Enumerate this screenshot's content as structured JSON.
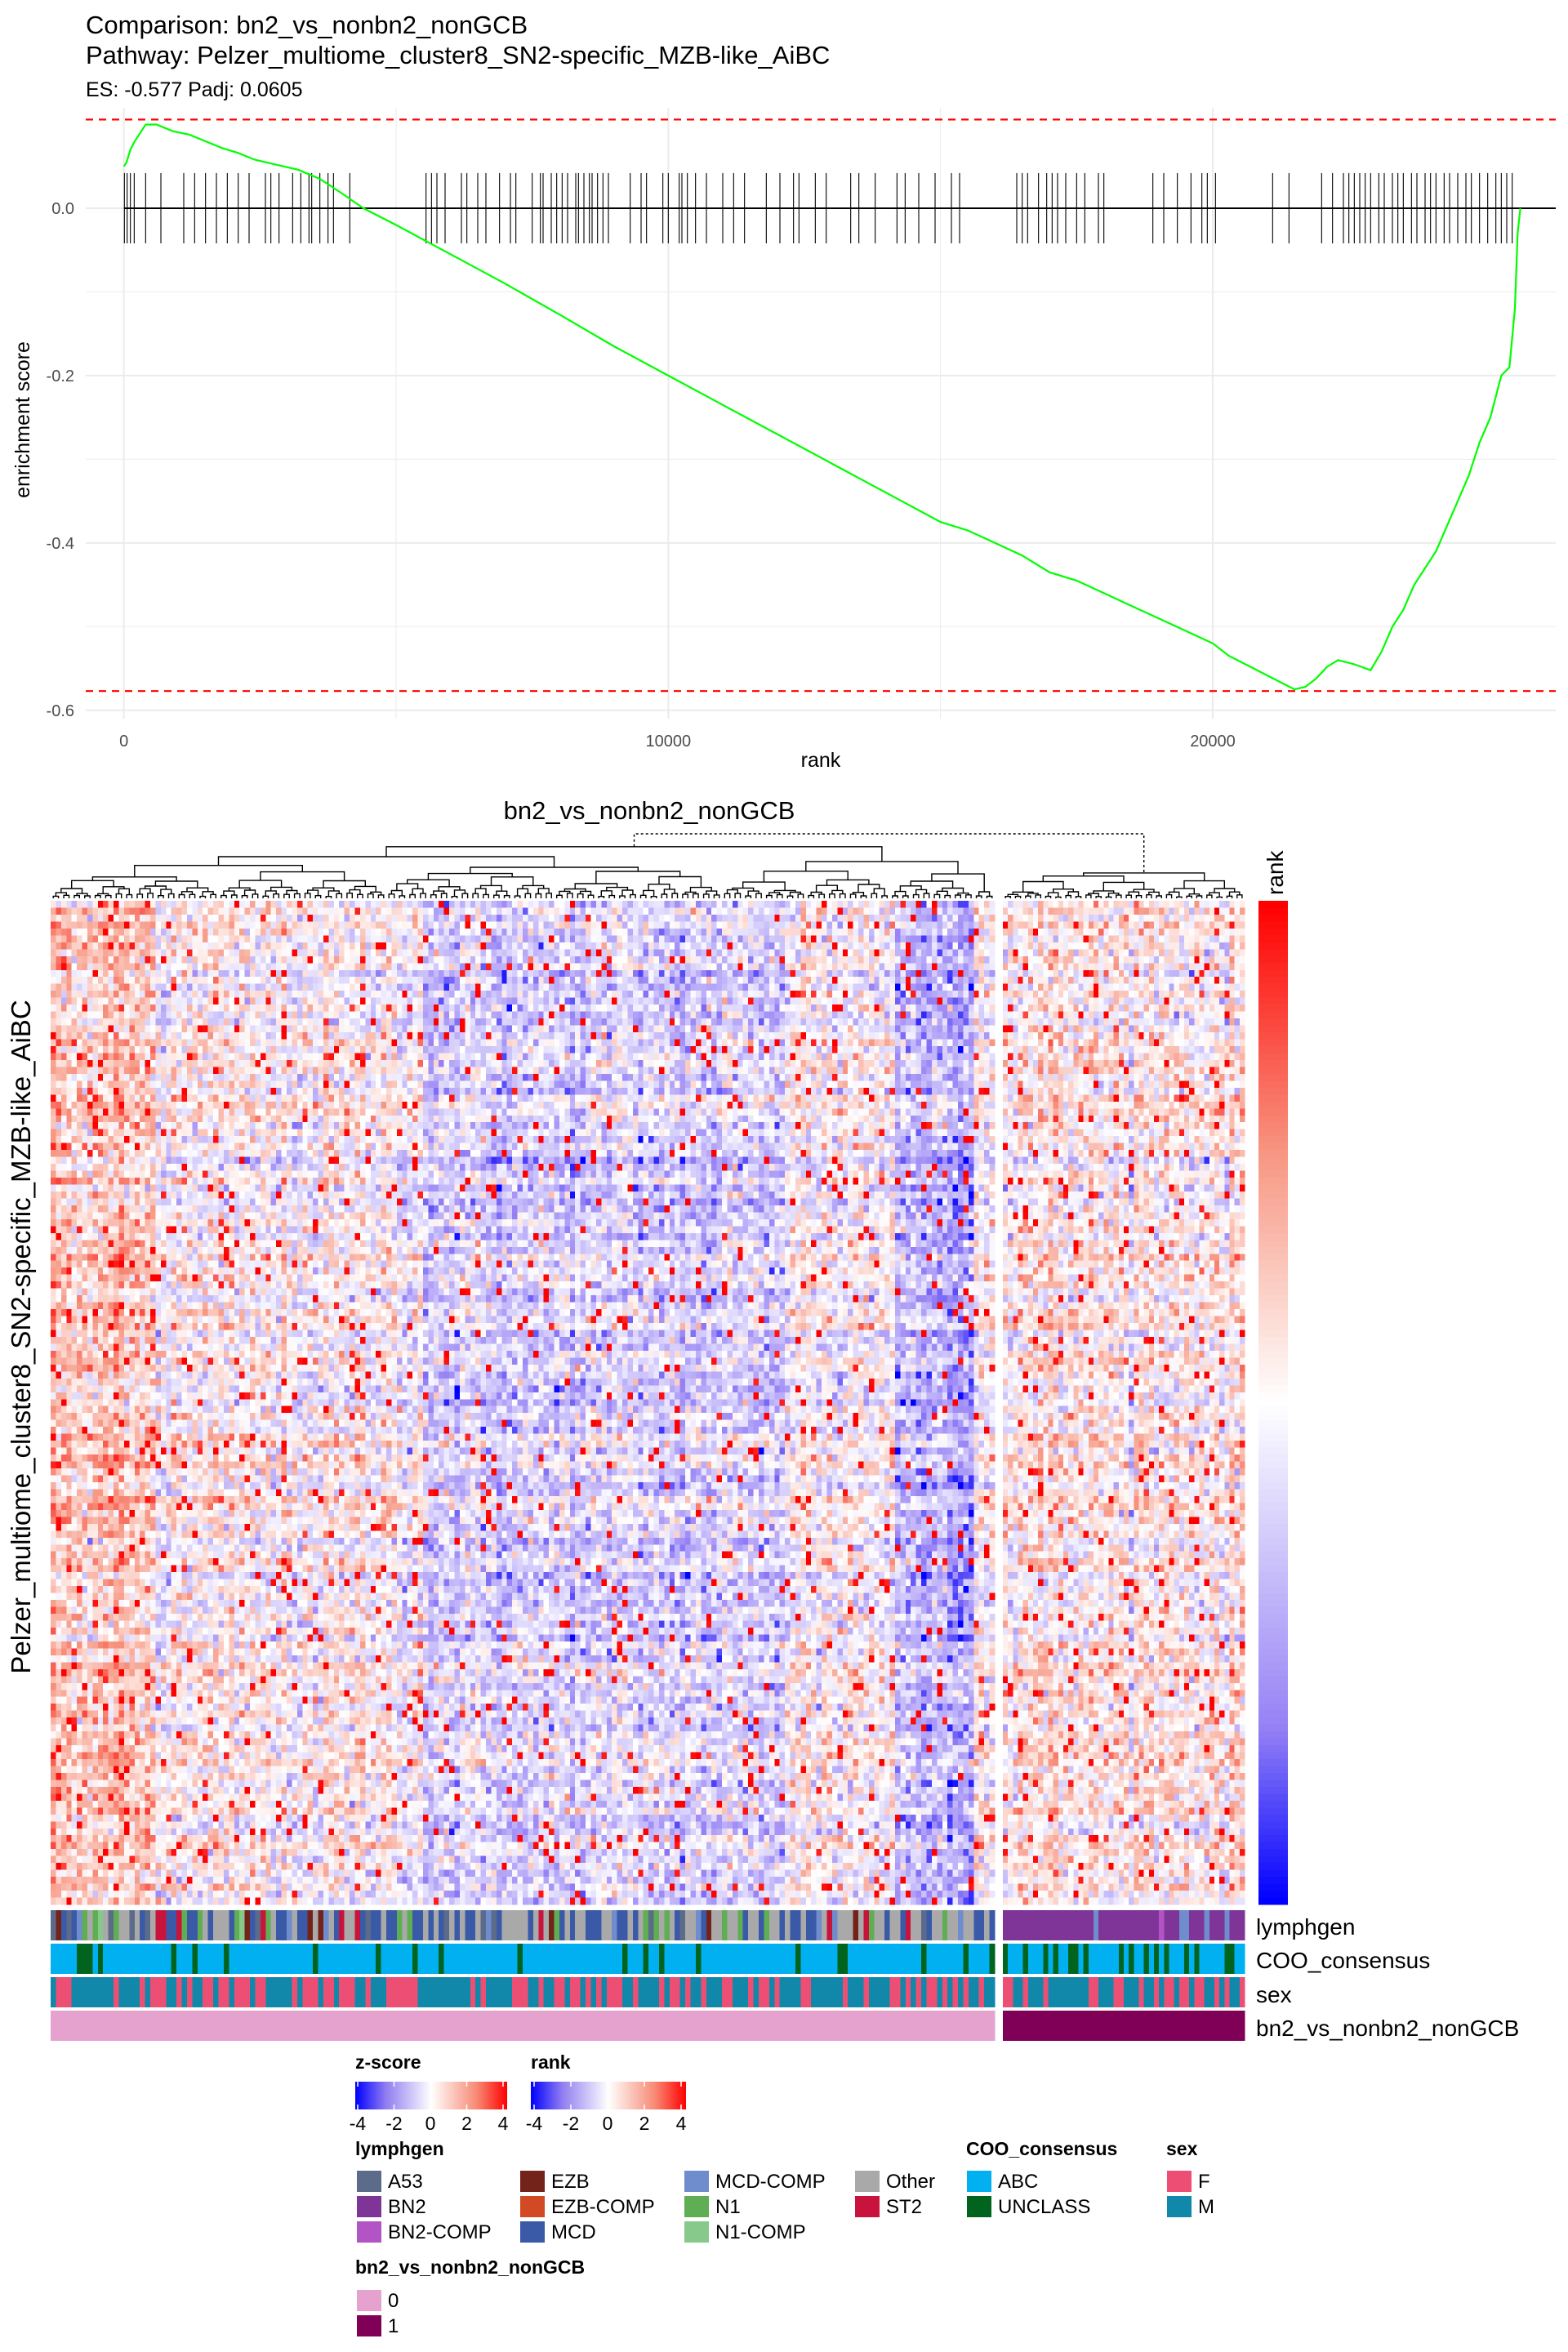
{
  "header": {
    "comparison": "Comparison: bn2_vs_nonbn2_nonGCB",
    "pathway": "Pathway: Pelzer_multiome_cluster8_SN2-specific_MZB-like_AiBC",
    "stats": "ES: -0.577 Padj: 0.0605"
  },
  "colors": {
    "curve": "#00ff00",
    "threshold": "#ff0000",
    "grid": "#ebebeb",
    "zlow": "#0000ff",
    "zmid": "#ffffff",
    "zhigh": "#ff0000"
  },
  "chart_data": [
    {
      "type": "line",
      "xlabel": "rank",
      "ylabel": "enrichment score",
      "xlim": [
        -700,
        26300
      ],
      "ylim": [
        -0.61,
        0.12
      ],
      "x_ticks": [
        0,
        10000,
        20000
      ],
      "x_tick_labels": [
        "0",
        "10000",
        "20000"
      ],
      "y_ticks": [
        0.0,
        -0.2,
        -0.4,
        -0.6
      ],
      "y_tick_labels": [
        "0.0",
        "-0.2",
        "-0.4",
        "-0.6"
      ],
      "grid": true,
      "thresholds": [
        0.106,
        -0.577
      ],
      "series": [
        {
          "x": [
            0,
            50,
            120,
            200,
            300,
            400,
            600,
            900,
            1200,
            1500,
            1800,
            2100,
            2400,
            2800,
            3200,
            3600,
            4000,
            4400,
            5000,
            6000,
            7000,
            8000,
            9000,
            10000,
            11000,
            12000,
            13000,
            14000,
            15000,
            15500,
            16000,
            16500,
            17000,
            17500,
            18000,
            18500,
            19000,
            19500,
            20000,
            20300,
            20600,
            20900,
            21200,
            21500,
            21700,
            21900,
            22100,
            22300,
            22600,
            22900,
            23100,
            23300,
            23500,
            23700,
            23900,
            24100,
            24300,
            24500,
            24700,
            24900,
            25100,
            25300,
            25450,
            25550,
            25600,
            25650
          ],
          "values": [
            0.05,
            0.055,
            0.07,
            0.08,
            0.09,
            0.1,
            0.1,
            0.092,
            0.088,
            0.08,
            0.072,
            0.066,
            0.058,
            0.052,
            0.046,
            0.035,
            0.018,
            0.0,
            -0.02,
            -0.055,
            -0.09,
            -0.127,
            -0.165,
            -0.2,
            -0.235,
            -0.27,
            -0.305,
            -0.34,
            -0.375,
            -0.385,
            -0.4,
            -0.415,
            -0.435,
            -0.445,
            -0.46,
            -0.475,
            -0.49,
            -0.505,
            -0.52,
            -0.535,
            -0.545,
            -0.555,
            -0.565,
            -0.575,
            -0.572,
            -0.562,
            -0.548,
            -0.54,
            -0.545,
            -0.552,
            -0.53,
            -0.5,
            -0.48,
            -0.45,
            -0.43,
            -0.41,
            -0.38,
            -0.35,
            -0.32,
            -0.28,
            -0.25,
            -0.2,
            -0.19,
            -0.12,
            -0.03,
            0.0
          ]
        }
      ],
      "hit_ranks": [
        10,
        60,
        120,
        190,
        400,
        680,
        1100,
        1300,
        1500,
        1700,
        1900,
        2100,
        2300,
        2600,
        2700,
        2850,
        3100,
        3250,
        3400,
        3450,
        3600,
        3750,
        3850,
        4150,
        5550,
        5650,
        5750,
        5900,
        6200,
        6300,
        6500,
        6650,
        6900,
        7100,
        7200,
        7500,
        7650,
        7700,
        7850,
        7950,
        8050,
        8150,
        8300,
        8350,
        8450,
        8550,
        8600,
        8700,
        8800,
        8900,
        9300,
        9500,
        9600,
        9900,
        10000,
        10200,
        10250,
        10350,
        10500,
        10700,
        11000,
        11200,
        11400,
        11800,
        12050,
        12300,
        12400,
        12700,
        12900,
        13350,
        13500,
        13800,
        14200,
        14350,
        14600,
        14900,
        15200,
        15350,
        16400,
        16500,
        16600,
        16800,
        16950,
        17050,
        17150,
        17300,
        17500,
        17650,
        17900,
        18000,
        18900,
        19100,
        19350,
        19600,
        19800,
        19900,
        20050,
        21100,
        21400,
        22000,
        22200,
        22400,
        22500,
        22600,
        22700,
        22800,
        22900,
        23050,
        23150,
        23300,
        23400,
        23500,
        23650,
        23750,
        23900,
        24000,
        24100,
        24250,
        24350,
        24500,
        24650,
        24750,
        24900,
        25050,
        25200,
        25300,
        25400,
        25500
      ]
    },
    {
      "type": "heatmap",
      "title": "bn2_vs_nonbn2_nonGCB",
      "ylabel": "Pelzer_multiome_cluster8_SN2-specific_MZB-like_AiBC",
      "side_label": "rank",
      "annotation_tracks": [
        "lymphgen",
        "COO_consensus",
        "sex",
        "bn2_vs_nonbn2_nonGCB"
      ],
      "groups": [
        {
          "label": "0",
          "n_samples": 180
        },
        {
          "label": "1",
          "n_samples": 48
        }
      ],
      "n_genes": 145,
      "z_range": [
        -4,
        4
      ]
    }
  ],
  "legends": {
    "zscore": {
      "title": "z-score",
      "ticks": [
        "-4",
        "-2",
        "0",
        "2",
        "4"
      ]
    },
    "rank": {
      "title": "rank",
      "ticks": [
        "-4",
        "-2",
        "0",
        "2",
        "4"
      ]
    },
    "lymphgen": {
      "title": "lymphgen",
      "items": [
        {
          "label": "A53",
          "color": "#5d6b8a"
        },
        {
          "label": "BN2",
          "color": "#7f3598"
        },
        {
          "label": "BN2-COMP",
          "color": "#b253c6"
        },
        {
          "label": "EZB",
          "color": "#74231a"
        },
        {
          "label": "EZB-COMP",
          "color": "#d14a24"
        },
        {
          "label": "MCD",
          "color": "#3a5aa8"
        },
        {
          "label": "MCD-COMP",
          "color": "#6f8ccd"
        },
        {
          "label": "N1",
          "color": "#5fae53"
        },
        {
          "label": "N1-COMP",
          "color": "#86c98a"
        },
        {
          "label": "Other",
          "color": "#a9a9a9"
        },
        {
          "label": "ST2",
          "color": "#c8143c"
        }
      ]
    },
    "coo": {
      "title": "COO_consensus",
      "items": [
        {
          "label": "ABC",
          "color": "#00b0f0"
        },
        {
          "label": "UNCLASS",
          "color": "#00641e"
        }
      ]
    },
    "sex": {
      "title": "sex",
      "items": [
        {
          "label": "F",
          "color": "#ec4f73"
        },
        {
          "label": "M",
          "color": "#1188aa"
        }
      ]
    },
    "group": {
      "title": "bn2_vs_nonbn2_nonGCB",
      "items": [
        {
          "label": "0",
          "color": "#e6a2cf"
        },
        {
          "label": "1",
          "color": "#800058"
        }
      ]
    }
  }
}
